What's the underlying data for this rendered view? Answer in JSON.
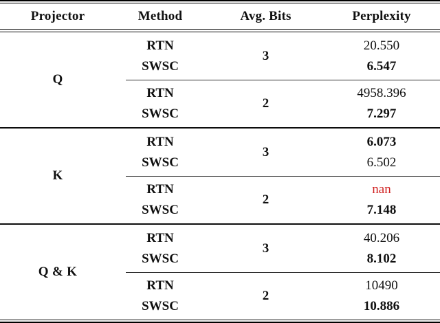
{
  "table": {
    "headers": [
      "Projector",
      "Method",
      "Avg. Bits",
      "Perplexity"
    ],
    "colors": {
      "highlight_red": "#d02020",
      "text": "#101010",
      "rule": "#000000"
    },
    "sections": [
      {
        "projector": "Q",
        "groups": [
          {
            "bits": "3",
            "rows": [
              {
                "method": "RTN",
                "perplexity": "20.550",
                "perplexity_style": "normal"
              },
              {
                "method": "SWSC",
                "perplexity": "6.547",
                "perplexity_style": "bold"
              }
            ]
          },
          {
            "bits": "2",
            "rows": [
              {
                "method": "RTN",
                "perplexity": "4958.396",
                "perplexity_style": "normal"
              },
              {
                "method": "SWSC",
                "perplexity": "7.297",
                "perplexity_style": "bold"
              }
            ]
          }
        ]
      },
      {
        "projector": "K",
        "groups": [
          {
            "bits": "3",
            "rows": [
              {
                "method": "RTN",
                "perplexity": "6.073",
                "perplexity_style": "bold"
              },
              {
                "method": "SWSC",
                "perplexity": "6.502",
                "perplexity_style": "normal"
              }
            ]
          },
          {
            "bits": "2",
            "rows": [
              {
                "method": "RTN",
                "perplexity": "nan",
                "perplexity_style": "red"
              },
              {
                "method": "SWSC",
                "perplexity": "7.148",
                "perplexity_style": "bold"
              }
            ]
          }
        ]
      },
      {
        "projector": "Q & K",
        "groups": [
          {
            "bits": "3",
            "rows": [
              {
                "method": "RTN",
                "perplexity": "40.206",
                "perplexity_style": "normal"
              },
              {
                "method": "SWSC",
                "perplexity": "8.102",
                "perplexity_style": "bold"
              }
            ]
          },
          {
            "bits": "2",
            "rows": [
              {
                "method": "RTN",
                "perplexity": "10490",
                "perplexity_style": "normal"
              },
              {
                "method": "SWSC",
                "perplexity": "10.886",
                "perplexity_style": "bold"
              }
            ]
          }
        ]
      }
    ]
  }
}
